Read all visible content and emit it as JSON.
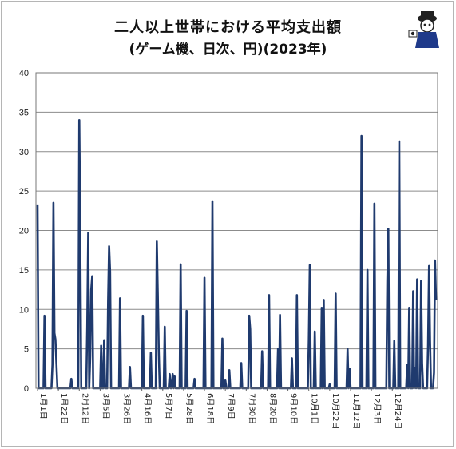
{
  "chart_data": {
    "type": "line",
    "title": "二人以上世帯における平均支出額",
    "subtitle": "(ゲーム機、日次、円)(2023年)",
    "xlabel": "",
    "ylabel": "",
    "ylim": [
      0,
      40
    ],
    "yticks": [
      0,
      5,
      10,
      15,
      20,
      25,
      30,
      35,
      40
    ],
    "grid": true,
    "legend": "none",
    "line_color": "#1f3a6e",
    "x_tick_labels": [
      "1月1日",
      "1月22日",
      "2月12日",
      "3月5日",
      "3月26日",
      "4月16日",
      "5月7日",
      "5月28日",
      "6月18日",
      "7月9日",
      "7月30日",
      "8月20日",
      "9月10日",
      "10月1日",
      "10月22日",
      "11月12日",
      "12月3日",
      "12月24日"
    ],
    "x_tick_days": [
      1,
      22,
      43,
      64,
      85,
      106,
      127,
      148,
      169,
      190,
      211,
      232,
      253,
      274,
      295,
      316,
      337,
      358
    ],
    "series": [
      {
        "values": [
          23.3,
          0,
          0,
          0,
          0,
          0,
          0,
          9.2,
          0,
          0,
          0,
          0,
          0,
          0,
          0,
          3.0,
          23.5,
          7.0,
          6.2,
          3.2,
          0,
          0,
          0,
          0,
          0,
          0,
          0,
          0,
          0,
          0,
          0,
          0,
          0,
          0,
          1.2,
          0,
          0,
          0,
          0,
          0,
          0,
          0,
          34.0,
          19.0,
          0,
          0,
          0,
          0,
          0,
          0,
          7.8,
          19.7,
          0,
          4.0,
          12.5,
          14.2,
          0,
          0,
          0,
          0,
          0,
          0,
          0,
          0,
          5.4,
          0,
          0,
          6.1,
          0,
          0,
          0,
          11.0,
          18.0,
          14.8,
          0,
          0,
          0,
          0,
          0,
          0,
          0,
          0,
          0,
          11.4,
          0,
          0,
          0,
          0,
          0,
          0,
          0,
          0,
          0,
          2.7,
          0,
          0,
          0,
          0,
          0,
          0,
          0,
          0,
          0,
          0,
          0,
          0,
          9.2,
          0,
          0,
          0,
          0,
          0,
          0,
          0,
          4.5,
          0,
          0,
          0,
          0,
          0,
          18.6,
          12.0,
          4.6,
          0,
          0,
          0,
          0,
          0,
          7.8,
          0,
          0,
          0,
          0,
          1.8,
          0,
          0,
          1.8,
          0,
          1.5,
          0,
          0,
          0,
          0,
          0,
          15.7,
          0,
          0,
          0,
          0,
          0,
          9.8,
          0,
          0,
          0,
          0,
          0,
          0,
          0,
          1.2,
          0,
          0,
          0,
          0,
          0,
          0,
          0,
          0,
          0,
          14.0,
          0,
          0,
          0,
          0,
          0,
          0,
          0,
          23.7,
          0,
          0,
          0,
          0,
          0,
          0,
          0,
          0,
          0,
          6.3,
          0,
          0,
          1.0,
          0,
          0,
          0,
          2.3,
          0,
          0,
          0,
          0,
          0,
          0,
          0,
          0,
          0,
          0,
          0,
          3.2,
          0,
          0,
          0,
          0,
          0,
          0,
          0,
          9.2,
          7.5,
          0,
          0,
          0,
          0,
          0,
          0,
          0,
          0,
          0,
          0,
          0,
          4.7,
          0,
          0,
          0,
          0,
          0,
          0,
          11.8,
          0,
          0,
          0,
          0,
          0,
          0,
          0,
          0,
          5.0,
          0,
          9.3,
          0,
          0,
          0,
          0,
          0,
          0,
          0,
          0,
          0,
          0,
          0,
          3.8,
          0,
          0,
          0,
          0,
          11.8,
          0,
          0,
          0,
          0,
          0,
          0,
          0,
          0,
          0,
          0,
          0,
          6.2,
          15.6,
          0,
          0,
          0,
          0,
          7.2,
          0,
          0,
          0,
          0,
          0,
          0,
          10.2,
          0,
          11.2,
          0,
          0,
          0,
          0,
          0,
          0.5,
          0,
          0,
          0,
          0,
          0,
          12.0,
          0,
          0,
          0,
          0,
          0,
          0,
          0,
          0,
          0,
          0,
          0,
          5.0,
          0,
          2.5,
          0,
          0,
          0,
          0,
          0,
          0,
          0,
          0,
          0,
          0,
          0,
          32.0,
          0,
          0,
          0,
          0,
          0,
          15.0,
          0,
          0,
          0,
          0,
          0,
          0,
          23.4,
          0,
          0,
          0,
          0,
          0,
          0,
          0,
          0,
          0,
          0,
          0,
          0,
          13.6,
          20.2,
          0,
          0,
          0,
          0,
          0,
          6.0,
          0,
          0,
          0,
          0,
          31.3,
          0,
          0,
          0,
          0,
          0,
          0,
          0,
          3.0,
          0,
          10.2,
          0,
          0,
          0,
          12.3,
          0,
          2.6,
          0,
          13.8,
          0,
          0,
          0,
          13.6,
          3.2,
          0,
          0,
          0,
          0,
          0,
          5.5,
          15.5,
          6.0,
          0,
          0,
          0,
          2.0,
          16.2,
          11.2
        ]
      }
    ]
  }
}
